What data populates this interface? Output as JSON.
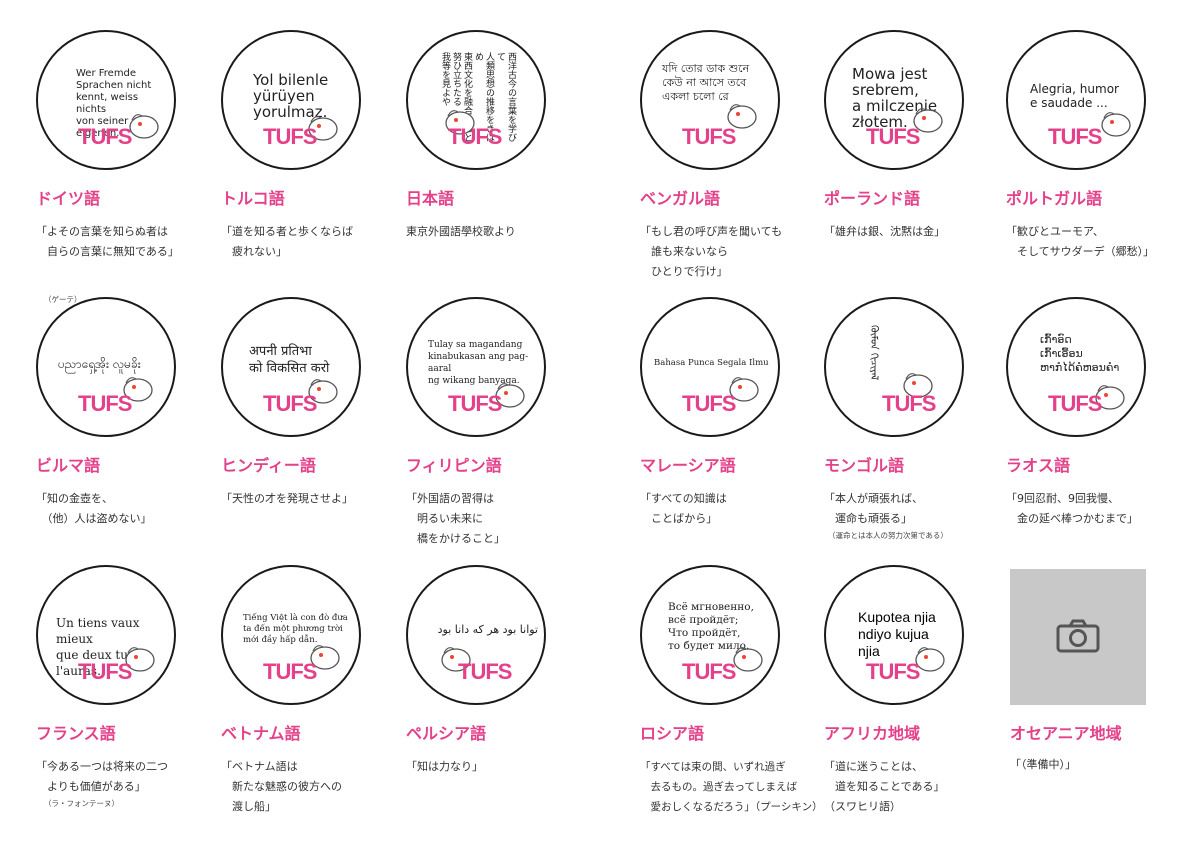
{
  "brand": {
    "logo_text": "TUFS",
    "accent": "#e4418a"
  },
  "cards": [
    {
      "lang": "ドイツ語",
      "phrase": "Wer Fremde\nSprachen nicht\nkennt, weiss nichts\nvon seiner\neigenen.",
      "quote": "「よその言葉を知らぬ者は\n　自らの言葉に無知である」",
      "note": "（ゲーテ）"
    },
    {
      "lang": "トルコ語",
      "phrase": "Yol bilenle\nyürüyen\nyorulmaz.",
      "quote": "「道を知る者と歩くならば\n　疲れない」",
      "note": ""
    },
    {
      "lang": "日本語",
      "phrase": "西洋古今の言葉を学びて\n人類思想の推移をきはめ\n東西文化を融合せんと\n努ひ立ちたる\n我等を見よや",
      "quote": "東京外國語學校歌より",
      "note": ""
    },
    {
      "lang": "ベンガル語",
      "phrase": "যদি তোর ডাক শুনে\nকেউ না আসে তবে\nএকলা চলো রে",
      "quote": "「もし君の呼び声を聞いても\n　誰も来ないなら\n　ひとりで行け」",
      "note": ""
    },
    {
      "lang": "ポーランド語",
      "phrase": "Mowa jest\nsrebrem,\na milczenie\nzłotem.",
      "quote": "「雄弁は銀、沈黙は金」",
      "note": ""
    },
    {
      "lang": "ポルトガル語",
      "phrase": "Alegria, humor\ne saudade ...",
      "quote": "「歓びとユーモア、\n　そしてサウダーデ（郷愁）」",
      "note": ""
    },
    {
      "lang": "ビルマ語",
      "phrase": "ပညာရှေ့အိုး လူမခိုး",
      "quote": "「知の金壺を、\n　（他）人は盗めない」",
      "note": ""
    },
    {
      "lang": "ヒンディー語",
      "phrase": "अपनी प्रतिभा\nको विकसित करो",
      "quote": "「天性の才を発現させよ」",
      "note": ""
    },
    {
      "lang": "フィリピン語",
      "phrase": "Tulay sa magandang\nkinabukasan ang pag-aaral\nng wikang banyaga.",
      "quote": "「外国語の習得は\n　明るい未来に\n　橋をかけること」",
      "note": ""
    },
    {
      "lang": "マレーシア語",
      "phrase": "Bahasa Punca Segala Ilmu",
      "quote": "「すべての知識は\n　ことばから」",
      "note": ""
    },
    {
      "lang": "モンゴル語",
      "phrase": "ᠬᠦᠮᠦᠨ ᠬᠢᠴᠢᠶᠡᠯ",
      "quote": "「本人が頑張れば、\n　運命も頑張る」",
      "note": "（運命とは本人の努力次第である）"
    },
    {
      "lang": "ラオス語",
      "phrase": "ເກົ້າອົດ\nເກົ້າເອື້ອນ\nຫາກໍໄດ້ຄໍຫອນຄໍາ",
      "quote": "「9回忍耐、9回我慢、\n　金の延べ棒つかむまで」",
      "note": ""
    },
    {
      "lang": "フランス語",
      "phrase": "Un tiens vaux mieux\nque deux tu l'auras.",
      "quote": "「今ある一つは将来の二つ\n　よりも価値がある」",
      "note": "（ラ・フォンテーヌ）"
    },
    {
      "lang": "ベトナム語",
      "phrase": "Tiếng Việt là con đò đưa\nta đến một phương trời\nmới đầy hấp dẫn.",
      "quote": "「ベトナム語は\n　新たな魅惑の彼方への\n　渡し船」",
      "note": ""
    },
    {
      "lang": "ペルシア語",
      "phrase": "توانا بود هر که دانا بود",
      "quote": "「知は力なり」",
      "note": ""
    },
    {
      "lang": "ロシア語",
      "phrase": "Всё мгновенно,\nвсё пройдёт;\nЧто пройдёт,\nто будет мило.",
      "quote": "「すべては束の間、いずれ過ぎ\n　去るもの。過ぎ去ってしまえば\n　愛おしくなるだろう」（プーシキン）",
      "note": ""
    },
    {
      "lang": "アフリカ地域",
      "phrase": "Kupotea njia\nndiyo kujua\nnjia",
      "quote": "「道に迷うことは、\n　道を知ることである」\n（スワヒリ語）",
      "note": ""
    },
    {
      "lang": "オセアニア地域",
      "phrase": "",
      "quote": "「（準備中）」",
      "note": ""
    }
  ],
  "icons": {
    "mascot": "mascot-bird-icon",
    "placeholder": "camera-icon"
  }
}
